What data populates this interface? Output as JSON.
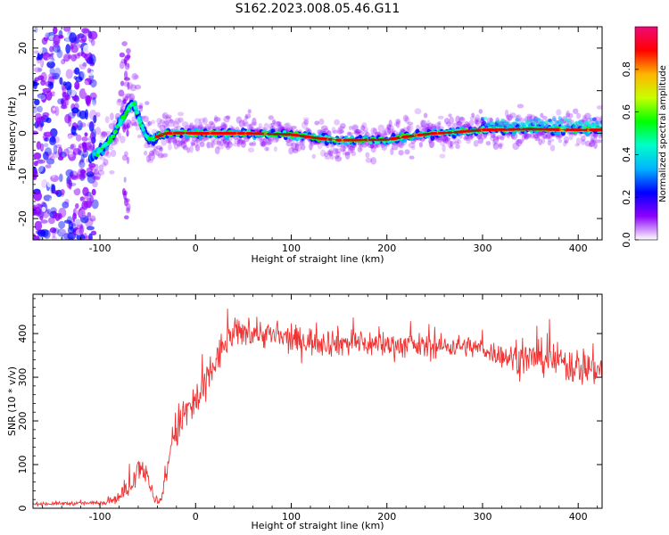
{
  "title": "S162.2023.008.05.46.G11",
  "chart_data": [
    {
      "type": "heatmap",
      "title": "",
      "xlabel": "Height of straight line (km)",
      "ylabel": "Frequency (Hz)",
      "xlim": [
        -170,
        425
      ],
      "ylim": [
        -25,
        25
      ],
      "x_ticks": [
        -100,
        0,
        100,
        200,
        300,
        400
      ],
      "x_tick_labels": [
        "-100",
        "0",
        "100",
        "200",
        "300",
        "400"
      ],
      "y_ticks": [
        -20,
        -10,
        0,
        10,
        20
      ],
      "y_tick_labels": [
        "-20",
        "-10",
        "0",
        "10",
        "20"
      ],
      "grid": false,
      "ridge": {
        "x": [
          -110,
          -100,
          -90,
          -80,
          -70,
          -65,
          -60,
          -55,
          -50,
          -45,
          -40,
          -30,
          -20,
          0,
          50,
          100,
          130,
          150,
          200,
          220,
          250,
          270,
          300,
          350,
          400,
          425
        ],
        "y": [
          -6,
          -4,
          -2,
          2,
          6,
          7,
          4,
          1,
          -1,
          -1.5,
          -0.8,
          0,
          0.1,
          0,
          0,
          -0.3,
          -1.2,
          -1.6,
          -1.5,
          -0.8,
          0,
          0.2,
          0.8,
          1.0,
          0.8,
          0.8
        ]
      },
      "colorbar": {
        "label": "Normalized spectral amplitude",
        "range": [
          0,
          1
        ],
        "ticks": [
          0.0,
          0.2,
          0.4,
          0.6,
          0.8
        ],
        "tick_labels": [
          "0.0",
          "0.2",
          "0.4",
          "0.6",
          "0.8"
        ],
        "colormap": [
          "#f00a78",
          "#ff0000",
          "#ffb400",
          "#c8ff00",
          "#00ff00",
          "#00ffc8",
          "#00b4ff",
          "#0000ff",
          "#8c00ff",
          "#ffffff"
        ]
      }
    },
    {
      "type": "line",
      "title": "",
      "xlabel": "Height of straight line (km)",
      "ylabel": "SNR (10 * v/v)",
      "xlim": [
        -170,
        425
      ],
      "ylim": [
        0,
        490
      ],
      "x_ticks": [
        -100,
        0,
        100,
        200,
        300,
        400
      ],
      "x_tick_labels": [
        "-100",
        "0",
        "100",
        "200",
        "300",
        "400"
      ],
      "y_ticks": [
        0,
        100,
        200,
        300,
        400
      ],
      "y_tick_labels": [
        "0",
        "100",
        "200",
        "300",
        "400"
      ],
      "grid": false,
      "series": [
        {
          "color": "#f03232",
          "envelope_x": [
            -170,
            -100,
            -80,
            -70,
            -60,
            -55,
            -50,
            -45,
            -40,
            -35,
            -30,
            -25,
            -20,
            -10,
            0,
            10,
            20,
            30,
            40,
            60,
            100,
            150,
            200,
            250,
            280,
            300,
            320,
            340,
            360,
            380,
            400,
            425
          ],
          "envelope_y": [
            10,
            12,
            25,
            45,
            95,
            100,
            60,
            35,
            10,
            20,
            90,
            150,
            180,
            220,
            240,
            275,
            330,
            375,
            400,
            405,
            385,
            380,
            375,
            370,
            372,
            365,
            350,
            340,
            345,
            335,
            325,
            320
          ],
          "noise_amplitude": [
            4,
            4,
            12,
            18,
            28,
            30,
            25,
            15,
            6,
            15,
            30,
            40,
            45,
            50,
            50,
            45,
            40,
            35,
            30,
            30,
            30,
            30,
            28,
            25,
            22,
            22,
            25,
            35,
            35,
            38,
            42,
            40
          ]
        }
      ]
    }
  ]
}
